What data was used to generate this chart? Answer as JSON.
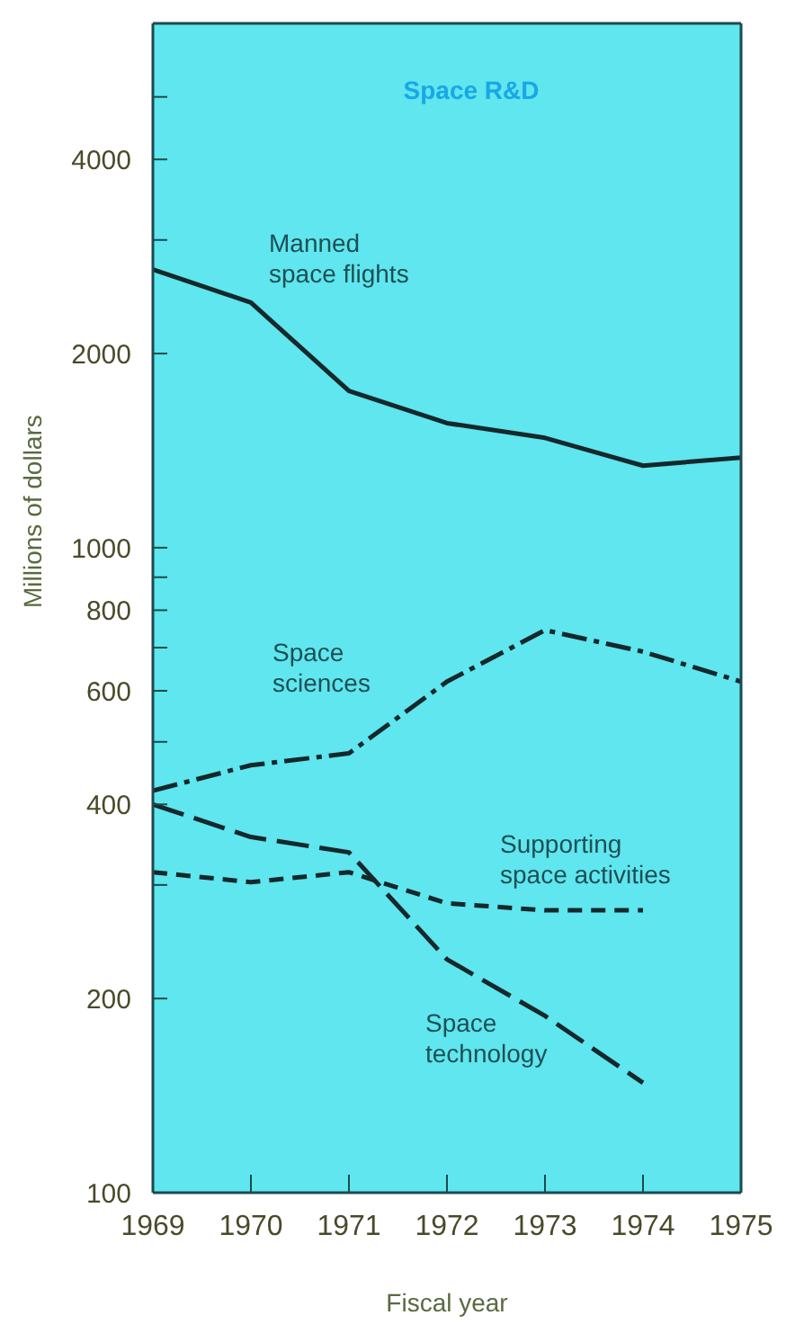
{
  "chart_data": {
    "type": "line",
    "title": "Space R&D",
    "xlabel": "Fiscal year",
    "ylabel": "Millions of dollars",
    "x": [
      1969,
      1970,
      1971,
      1972,
      1973,
      1974,
      1975
    ],
    "series": [
      {
        "name": "Manned space flights",
        "color": "#15282c",
        "line_style": "solid",
        "values": [
          2700,
          2400,
          1750,
          1560,
          1480,
          1340,
          1380
        ]
      },
      {
        "name": "Space sciences",
        "color": "#15282c",
        "line_style": "dashed",
        "values": [
          420,
          460,
          480,
          620,
          745,
          690,
          620
        ]
      },
      {
        "name": "Supporting space activities",
        "color": "#15282c",
        "line_style": "dashed",
        "values": [
          314,
          303,
          314,
          281,
          274,
          274,
          null
        ]
      },
      {
        "name": "Space technology",
        "color": "#15282c",
        "line_style": "dashed",
        "values": [
          400,
          356,
          337,
          230,
          188,
          148,
          null
        ]
      }
    ],
    "log": true,
    "xlim": [
      1969,
      1975
    ],
    "xticks": [
      1969,
      1970,
      1971,
      1972,
      1973,
      1974,
      1975
    ],
    "ylim": [
      100,
      6500
    ],
    "yticks": [
      100,
      200,
      {
        "value": 300,
        "label": null
      },
      400,
      {
        "value": 500,
        "label": null
      },
      600,
      {
        "value": 700,
        "label": null
      },
      800,
      {
        "value": 900,
        "label": null
      },
      1000,
      2000,
      {
        "value": 3000,
        "label": null
      },
      4000,
      {
        "value": 5000,
        "label": null
      }
    ],
    "grid": false,
    "legend": false,
    "marker": "none"
  }
}
